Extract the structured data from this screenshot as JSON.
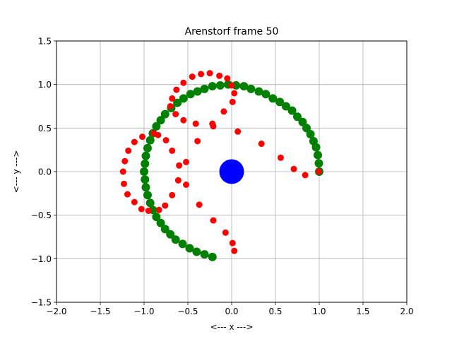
{
  "chart_data": {
    "type": "scatter",
    "title": "Arenstorf frame 50",
    "xlabel": "<---  x  --->",
    "ylabel": "<---  y  --->",
    "xlim": [
      -2.0,
      2.0
    ],
    "ylim": [
      -1.5,
      1.5
    ],
    "x_ticks": [
      -2.0,
      -1.5,
      -1.0,
      -0.5,
      0.0,
      0.5,
      1.0,
      1.5,
      2.0
    ],
    "y_ticks": [
      -1.5,
      -1.0,
      -0.5,
      0.0,
      0.5,
      1.0,
      1.5
    ],
    "x_tick_labels": [
      "−2.0",
      "−1.5",
      "−1.0",
      "−0.5",
      "0.0",
      "0.5",
      "1.0",
      "1.5",
      "2.0"
    ],
    "y_tick_labels": [
      "−1.5",
      "−1.0",
      "−0.5",
      "0.0",
      "0.5",
      "1.0",
      "1.5"
    ],
    "grid": true,
    "series": [
      {
        "color": "#008000",
        "marker": "large-circle",
        "points": [
          [
            1.0,
            0.0
          ],
          [
            0.996,
            0.095
          ],
          [
            0.984,
            0.19
          ],
          [
            0.964,
            0.28
          ],
          [
            0.935,
            0.35
          ],
          [
            0.9,
            0.43
          ],
          [
            0.855,
            0.5
          ],
          [
            0.81,
            0.57
          ],
          [
            0.75,
            0.63
          ],
          [
            0.69,
            0.7
          ],
          [
            0.62,
            0.75
          ],
          [
            0.55,
            0.8
          ],
          [
            0.47,
            0.84
          ],
          [
            0.39,
            0.89
          ],
          [
            0.31,
            0.92
          ],
          [
            0.22,
            0.95
          ],
          [
            0.14,
            0.98
          ],
          [
            0.05,
            0.99
          ],
          [
            -0.04,
            1.0
          ],
          [
            -0.13,
            0.99
          ],
          [
            -0.22,
            0.98
          ],
          [
            -0.31,
            0.95
          ],
          [
            -0.39,
            0.92
          ],
          [
            -0.47,
            0.89
          ],
          [
            -0.55,
            0.84
          ],
          [
            -0.62,
            0.79
          ],
          [
            -0.69,
            0.73
          ],
          [
            -0.76,
            0.66
          ],
          [
            -0.81,
            0.59
          ],
          [
            -0.86,
            0.52
          ],
          [
            -0.9,
            0.44
          ],
          [
            -0.93,
            0.36
          ],
          [
            -0.96,
            0.27
          ],
          [
            -0.98,
            0.18
          ],
          [
            -0.99,
            0.09
          ],
          [
            -1.0,
            0.0
          ],
          [
            -0.99,
            -0.09
          ],
          [
            -0.98,
            -0.18
          ],
          [
            -0.96,
            -0.27
          ],
          [
            -0.93,
            -0.36
          ],
          [
            -0.9,
            -0.44
          ],
          [
            -0.86,
            -0.52
          ],
          [
            -0.81,
            -0.59
          ],
          [
            -0.76,
            -0.66
          ],
          [
            -0.7,
            -0.72
          ],
          [
            -0.64,
            -0.78
          ],
          [
            -0.56,
            -0.83
          ],
          [
            -0.48,
            -0.88
          ],
          [
            -0.4,
            -0.92
          ],
          [
            -0.31,
            -0.95
          ],
          [
            -0.22,
            -0.98
          ]
        ]
      },
      {
        "color": "#ff0000",
        "marker": "small-circle",
        "points": [
          [
            0.994,
            0.0
          ],
          [
            0.84,
            -0.04
          ],
          [
            0.71,
            0.03
          ],
          [
            0.56,
            0.16
          ],
          [
            0.34,
            0.32
          ],
          [
            0.07,
            0.46
          ],
          [
            -0.21,
            0.52
          ],
          [
            -0.22,
            0.55
          ],
          [
            -0.09,
            0.69
          ],
          [
            0.01,
            0.8
          ],
          [
            0.03,
            0.9
          ],
          [
            0.0,
            0.99
          ],
          [
            -0.05,
            1.07
          ],
          [
            -0.14,
            1.1
          ],
          [
            -0.25,
            1.13
          ],
          [
            -0.35,
            1.12
          ],
          [
            -0.45,
            1.09
          ],
          [
            -0.55,
            1.02
          ],
          [
            -0.63,
            0.94
          ],
          [
            -0.68,
            0.84
          ],
          [
            -0.7,
            0.75
          ],
          [
            -0.64,
            0.66
          ],
          [
            -0.55,
            0.59
          ],
          [
            -0.41,
            0.55
          ],
          [
            -0.39,
            0.35
          ],
          [
            -0.52,
            0.11
          ],
          [
            -0.6,
            0.07
          ],
          [
            -0.68,
            0.24
          ],
          [
            -0.75,
            0.36
          ],
          [
            -0.84,
            0.42
          ],
          [
            -0.89,
            0.44
          ],
          [
            -1.02,
            0.4
          ],
          [
            -1.11,
            0.34
          ],
          [
            -1.18,
            0.24
          ],
          [
            -1.22,
            0.12
          ],
          [
            -1.24,
            0.0
          ],
          [
            -1.23,
            -0.14
          ],
          [
            -1.19,
            -0.26
          ],
          [
            -1.11,
            -0.35
          ],
          [
            -1.03,
            -0.43
          ],
          [
            -0.95,
            -0.45
          ],
          [
            -0.83,
            -0.44
          ],
          [
            -0.76,
            -0.39
          ],
          [
            -0.68,
            -0.27
          ],
          [
            -0.61,
            -0.1
          ],
          [
            -0.52,
            -0.15
          ],
          [
            -0.37,
            -0.38
          ],
          [
            -0.21,
            -0.56
          ],
          [
            -0.07,
            -0.7
          ],
          [
            0.01,
            -0.82
          ],
          [
            0.03,
            -0.91
          ]
        ]
      },
      {
        "color": "#0000ff",
        "marker": "big-disk",
        "points": [
          [
            0.0,
            0.0
          ]
        ]
      }
    ]
  }
}
